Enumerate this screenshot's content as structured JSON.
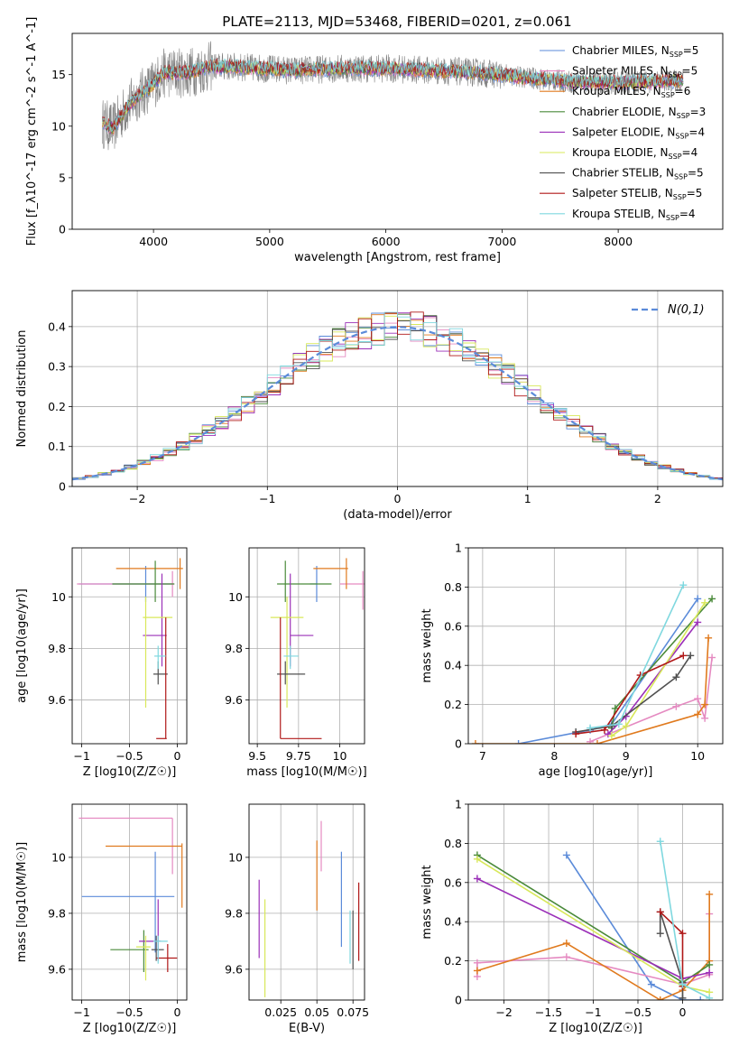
{
  "figure": {
    "title": "PLATE=2113, MJD=53468, FIBERID=0201, z=0.061",
    "models": [
      {
        "name": "Chabrier MILES",
        "nssp": 5,
        "color": "#5b8bd9"
      },
      {
        "name": "Salpeter MILES",
        "nssp": 5,
        "color": "#e58ac1"
      },
      {
        "name": "Kroupa MILES",
        "nssp": 6,
        "color": "#e07a1e"
      },
      {
        "name": "Chabrier ELODIE",
        "nssp": 3,
        "color": "#4a8a3a"
      },
      {
        "name": "Salpeter ELODIE",
        "nssp": 4,
        "color": "#9b30b8"
      },
      {
        "name": "Kroupa ELODIE",
        "nssp": 4,
        "color": "#d8e85a"
      },
      {
        "name": "Chabrier STELIB",
        "nssp": 5,
        "color": "#505050"
      },
      {
        "name": "Salpeter STELIB",
        "nssp": 5,
        "color": "#b01818"
      },
      {
        "name": "Kroupa STELIB",
        "nssp": 4,
        "color": "#7fd8df"
      }
    ]
  },
  "chart_data": [
    {
      "id": "spectrum",
      "type": "line",
      "xlabel": "wavelength [Angstrom, rest frame]",
      "ylabel": "Flux [f_λ10^-17 erg cm^-2 s^-1 A^-1]",
      "xlim": [
        3300,
        8900
      ],
      "ylim": [
        0,
        19
      ],
      "xticks": [
        4000,
        5000,
        6000,
        7000,
        8000
      ],
      "yticks": [
        0,
        5,
        10,
        15
      ],
      "legend_position": "top-right",
      "data_color": "#808080",
      "spectrum_knots": [
        [
          3560,
          10.3
        ],
        [
          3650,
          9.8
        ],
        [
          3750,
          11.5
        ],
        [
          3850,
          12.8
        ],
        [
          3950,
          13.6
        ],
        [
          4100,
          15.2
        ],
        [
          4300,
          15.2
        ],
        [
          4500,
          15.8
        ],
        [
          4800,
          15.7
        ],
        [
          5200,
          15.4
        ],
        [
          5600,
          15.6
        ],
        [
          6000,
          15.6
        ],
        [
          6400,
          15.4
        ],
        [
          6800,
          15.2
        ],
        [
          7200,
          14.7
        ],
        [
          7600,
          14.3
        ],
        [
          8000,
          14.2
        ],
        [
          8500,
          14.4
        ]
      ],
      "x_range_plotted": [
        3560,
        8560
      ]
    },
    {
      "id": "residuals",
      "type": "line",
      "xlabel": "(data-model)/error",
      "ylabel": "Normed distribution",
      "xlim": [
        -2.5,
        2.5
      ],
      "ylim": [
        0,
        0.49
      ],
      "xticks": [
        -2,
        -1,
        0,
        1,
        2
      ],
      "yticks": [
        0,
        0.1,
        0.2,
        0.3,
        0.4
      ],
      "grid": true,
      "legend": "N(0,1)",
      "legend_position": "top-right",
      "gaussian_color": "#5b8bd9"
    },
    {
      "id": "age_vs_Z",
      "type": "scatter",
      "xlabel": "Z [log10(Z/Z☉)]",
      "ylabel": "age  [log10(age/yr)]",
      "xlim": [
        -1.1,
        0.1
      ],
      "ylim": [
        9.43,
        10.19
      ],
      "xticks": [
        -1.0,
        -0.5,
        0.0
      ],
      "yticks": [
        9.6,
        9.8,
        10.0
      ],
      "grid": true,
      "points": [
        {
          "model": "Chabrier MILES",
          "x": -0.33,
          "xerr": [
            0.7,
            0.28
          ],
          "y": 10.05,
          "yerr": [
            0.07,
            0.07
          ]
        },
        {
          "model": "Salpeter MILES",
          "x": -0.05,
          "xerr": [
            1.0,
            0.02
          ],
          "y": 10.05,
          "yerr": [
            0.05,
            0.05
          ]
        },
        {
          "model": "Kroupa MILES",
          "x": 0.03,
          "xerr": [
            0.67,
            0.03
          ],
          "y": 10.11,
          "yerr": [
            0.08,
            0.04
          ]
        },
        {
          "model": "Chabrier ELODIE",
          "x": -0.23,
          "xerr": [
            0.45,
            0.2
          ],
          "y": 10.05,
          "yerr": [
            0.07,
            0.09
          ]
        },
        {
          "model": "Salpeter ELODIE",
          "x": -0.16,
          "xerr": [
            0.2,
            0.05
          ],
          "y": 9.85,
          "yerr": [
            0.12,
            0.24
          ]
        },
        {
          "model": "Kroupa ELODIE",
          "x": -0.33,
          "xerr": [
            0.03,
            0.28
          ],
          "y": 9.92,
          "yerr": [
            0.35,
            0.08
          ]
        },
        {
          "model": "Chabrier STELIB",
          "x": -0.2,
          "xerr": [
            0.05,
            0.1
          ],
          "y": 9.7,
          "yerr": [
            0.04,
            0.05
          ]
        },
        {
          "model": "Salpeter STELIB",
          "x": -0.12,
          "xerr": [
            0.1,
            0.01
          ],
          "y": 9.45,
          "yerr": [
            0.0,
            0.47
          ]
        },
        {
          "model": "Kroupa STELIB",
          "x": -0.2,
          "xerr": [
            0.04,
            0.08
          ],
          "y": 9.77,
          "yerr": [
            0.05,
            0.04
          ]
        }
      ]
    },
    {
      "id": "age_vs_mass",
      "type": "scatter",
      "xlabel": "mass [log10(M/M☉)]",
      "ylabel": "",
      "xlim": [
        9.45,
        10.15
      ],
      "ylim": [
        9.43,
        10.19
      ],
      "xticks": [
        9.5,
        9.75,
        10.0
      ],
      "yticks": [
        9.6,
        9.8,
        10.0
      ],
      "grid": true,
      "points": [
        {
          "model": "Chabrier MILES",
          "x": 9.86,
          "xerr": [
            0.04,
            0.0
          ],
          "y": 10.05,
          "yerr": [
            0.07,
            0.07
          ]
        },
        {
          "model": "Salpeter MILES",
          "x": 10.14,
          "xerr": [
            0.14,
            0.01
          ],
          "y": 10.05,
          "yerr": [
            0.1,
            0.05
          ]
        },
        {
          "model": "Kroupa MILES",
          "x": 10.04,
          "xerr": [
            0.2,
            0.01
          ],
          "y": 10.11,
          "yerr": [
            0.08,
            0.04
          ]
        },
        {
          "model": "Chabrier ELODIE",
          "x": 9.67,
          "xerr": [
            0.05,
            0.28
          ],
          "y": 10.05,
          "yerr": [
            0.07,
            0.09
          ]
        },
        {
          "model": "Salpeter ELODIE",
          "x": 9.7,
          "xerr": [
            0.0,
            0.14
          ],
          "y": 9.85,
          "yerr": [
            0.12,
            0.24
          ]
        },
        {
          "model": "Kroupa ELODIE",
          "x": 9.68,
          "xerr": [
            0.1,
            0.1
          ],
          "y": 9.92,
          "yerr": [
            0.35,
            0.08
          ]
        },
        {
          "model": "Chabrier STELIB",
          "x": 9.67,
          "xerr": [
            0.05,
            0.12
          ],
          "y": 9.7,
          "yerr": [
            0.04,
            0.05
          ]
        },
        {
          "model": "Salpeter STELIB",
          "x": 9.64,
          "xerr": [
            0.0,
            0.25
          ],
          "y": 9.45,
          "yerr": [
            0.0,
            0.47
          ]
        },
        {
          "model": "Kroupa STELIB",
          "x": 9.7,
          "xerr": [
            0.04,
            0.05
          ],
          "y": 9.77,
          "yerr": [
            0.05,
            0.04
          ]
        }
      ]
    },
    {
      "id": "weight_vs_age",
      "type": "line",
      "xlabel": "age  [log10(age/yr)]",
      "ylabel": "mass weight",
      "xlim": [
        6.8,
        10.35
      ],
      "ylim": [
        0,
        1.0
      ],
      "xticks": [
        7,
        8,
        9,
        10
      ],
      "yticks": [
        0.0,
        0.2,
        0.4,
        0.6,
        0.8,
        1.0
      ],
      "grid": true,
      "series": [
        {
          "model": "Chabrier MILES",
          "x": [
            7.5,
            8.5,
            8.8,
            10.0
          ],
          "y": [
            0.0,
            0.07,
            0.1,
            0.74
          ]
        },
        {
          "model": "Salpeter MILES",
          "x": [
            8.5,
            9.7,
            10.0,
            10.1,
            10.2
          ],
          "y": [
            0.01,
            0.19,
            0.23,
            0.13,
            0.44
          ]
        },
        {
          "model": "Kroupa MILES",
          "x": [
            6.9,
            8.6,
            10.0,
            10.1,
            10.15
          ],
          "y": [
            0.0,
            0.0,
            0.15,
            0.2,
            0.54
          ]
        },
        {
          "model": "Chabrier ELODIE",
          "x": [
            8.8,
            8.85,
            10.2
          ],
          "y": [
            0.08,
            0.18,
            0.74
          ]
        },
        {
          "model": "Salpeter ELODIE",
          "x": [
            8.75,
            9.0,
            10.0
          ],
          "y": [
            0.05,
            0.14,
            0.62
          ]
        },
        {
          "model": "Kroupa ELODIE",
          "x": [
            8.8,
            9.0,
            10.1
          ],
          "y": [
            0.04,
            0.09,
            0.72
          ]
        },
        {
          "model": "Chabrier STELIB",
          "x": [
            8.3,
            8.8,
            9.7,
            9.9
          ],
          "y": [
            0.06,
            0.09,
            0.34,
            0.45
          ]
        },
        {
          "model": "Salpeter STELIB",
          "x": [
            8.3,
            8.7,
            9.2,
            9.8
          ],
          "y": [
            0.05,
            0.07,
            0.35,
            0.45
          ]
        },
        {
          "model": "Kroupa STELIB",
          "x": [
            8.5,
            8.9,
            9.8
          ],
          "y": [
            0.08,
            0.1,
            0.81
          ]
        }
      ]
    },
    {
      "id": "mass_vs_Z",
      "type": "scatter",
      "xlabel": "Z [log10(Z/Z☉)]",
      "ylabel": "mass [log10(M/M☉)]",
      "xlim": [
        -1.1,
        0.1
      ],
      "ylim": [
        9.49,
        10.19
      ],
      "xticks": [
        -1.0,
        -0.5,
        0.0
      ],
      "yticks": [
        9.6,
        9.8,
        10.0
      ],
      "grid": true,
      "points": [
        {
          "model": "Chabrier MILES",
          "x": -0.23,
          "xerr": [
            0.77,
            0.2
          ],
          "y": 9.86,
          "yerr": [
            0.2,
            0.16
          ]
        },
        {
          "model": "Salpeter MILES",
          "x": -0.05,
          "xerr": [
            0.98,
            0.0
          ],
          "y": 10.14,
          "yerr": [
            0.2,
            0.0
          ]
        },
        {
          "model": "Kroupa MILES",
          "x": 0.05,
          "xerr": [
            0.8,
            0.0
          ],
          "y": 10.04,
          "yerr": [
            0.22,
            0.01
          ]
        },
        {
          "model": "Chabrier ELODIE",
          "x": -0.35,
          "xerr": [
            0.35,
            0.05
          ],
          "y": 9.67,
          "yerr": [
            0.08,
            0.07
          ]
        },
        {
          "model": "Salpeter ELODIE",
          "x": -0.2,
          "xerr": [
            0.2,
            0.03
          ],
          "y": 9.7,
          "yerr": [
            0.07,
            0.15
          ]
        },
        {
          "model": "Kroupa ELODIE",
          "x": -0.33,
          "xerr": [
            0.1,
            0.05
          ],
          "y": 9.68,
          "yerr": [
            0.12,
            0.04
          ]
        },
        {
          "model": "Chabrier STELIB",
          "x": -0.22,
          "xerr": [
            0.05,
            0.08
          ],
          "y": 9.67,
          "yerr": [
            0.04,
            0.05
          ]
        },
        {
          "model": "Salpeter STELIB",
          "x": -0.1,
          "xerr": [
            0.12,
            0.1
          ],
          "y": 9.64,
          "yerr": [
            0.05,
            0.05
          ]
        },
        {
          "model": "Kroupa STELIB",
          "x": -0.2,
          "xerr": [
            0.05,
            0.1
          ],
          "y": 9.7,
          "yerr": [
            0.08,
            0.02
          ]
        }
      ]
    },
    {
      "id": "mass_vs_ebv",
      "type": "scatter",
      "xlabel": "E(B-V)",
      "ylabel": "",
      "xlim": [
        0.003,
        0.083
      ],
      "ylim": [
        9.49,
        10.19
      ],
      "xticks": [
        0.025,
        0.05,
        0.075
      ],
      "yticks": [
        9.6,
        9.8,
        10.0
      ],
      "grid": true,
      "points": [
        {
          "model": "Chabrier MILES",
          "x": 0.067,
          "y": 9.86,
          "yerr": [
            0.18,
            0.16
          ]
        },
        {
          "model": "Salpeter MILES",
          "x": 0.053,
          "y": 10.02,
          "yerr": [
            0.07,
            0.11
          ]
        },
        {
          "model": "Kroupa MILES",
          "x": 0.05,
          "y": 9.96,
          "yerr": [
            0.15,
            0.1
          ]
        },
        {
          "model": "Salpeter ELODIE",
          "x": 0.01,
          "y": 9.79,
          "yerr": [
            0.15,
            0.13
          ]
        },
        {
          "model": "Kroupa ELODIE",
          "x": 0.014,
          "y": 9.7,
          "yerr": [
            0.2,
            0.15
          ]
        },
        {
          "model": "Chabrier STELIB",
          "x": 0.075,
          "y": 9.72,
          "yerr": [
            0.12,
            0.09
          ]
        },
        {
          "model": "Salpeter STELIB",
          "x": 0.079,
          "y": 9.78,
          "yerr": [
            0.15,
            0.13
          ]
        },
        {
          "model": "Kroupa STELIB",
          "x": 0.073,
          "y": 9.72,
          "yerr": [
            0.1,
            0.09
          ]
        }
      ]
    },
    {
      "id": "weight_vs_Z",
      "type": "line",
      "xlabel": "Z [log10(Z/Z☉)]",
      "ylabel": "mass weight",
      "xlim": [
        -2.4,
        0.45
      ],
      "ylim": [
        0,
        1.0
      ],
      "xticks": [
        -2.0,
        -1.5,
        -1.0,
        -0.5,
        0.0
      ],
      "yticks": [
        0.0,
        0.2,
        0.4,
        0.6,
        0.8,
        1.0
      ],
      "grid": true,
      "series": [
        {
          "model": "Chabrier MILES",
          "x": [
            -1.3,
            -0.35,
            0.0,
            0.2
          ],
          "y": [
            0.74,
            0.08,
            0.0,
            0.0
          ]
        },
        {
          "model": "Salpeter MILES",
          "x": [
            -2.3,
            -2.3,
            -1.3,
            0.0,
            0.3,
            0.3
          ],
          "y": [
            0.12,
            0.19,
            0.22,
            0.08,
            0.13,
            0.44
          ]
        },
        {
          "model": "Kroupa MILES",
          "x": [
            -2.3,
            -1.3,
            -0.25,
            0.0,
            0.3,
            0.3
          ],
          "y": [
            0.15,
            0.29,
            0.0,
            0.05,
            0.2,
            0.54
          ]
        },
        {
          "model": "Chabrier ELODIE",
          "x": [
            -2.3,
            0.0,
            0.3
          ],
          "y": [
            0.74,
            0.09,
            0.18
          ]
        },
        {
          "model": "Salpeter ELODIE",
          "x": [
            -2.3,
            0.0,
            0.3
          ],
          "y": [
            0.62,
            0.11,
            0.14
          ]
        },
        {
          "model": "Kroupa ELODIE",
          "x": [
            -2.3,
            0.0,
            0.3
          ],
          "y": [
            0.72,
            0.07,
            0.04
          ]
        },
        {
          "model": "Chabrier STELIB",
          "x": [
            -0.25,
            -0.25,
            0.0,
            0.0
          ],
          "y": [
            0.34,
            0.45,
            0.09,
            0.01
          ]
        },
        {
          "model": "Salpeter STELIB",
          "x": [
            -0.25,
            0.0,
            0.0
          ],
          "y": [
            0.45,
            0.34,
            0.07
          ]
        },
        {
          "model": "Kroupa STELIB",
          "x": [
            -0.25,
            0.0,
            0.3
          ],
          "y": [
            0.81,
            0.08,
            0.01
          ]
        }
      ]
    }
  ]
}
